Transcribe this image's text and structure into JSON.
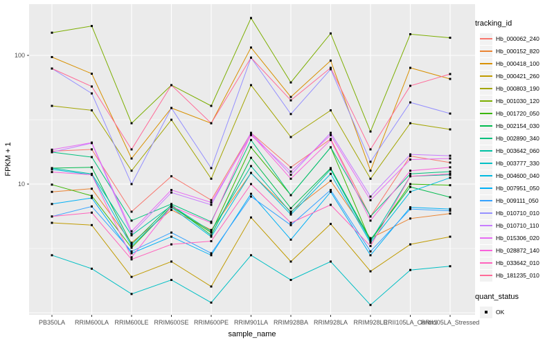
{
  "chart_data": {
    "type": "line",
    "title": "",
    "xlabel": "sample_name",
    "ylabel": "FPKM + 1",
    "yscale": "log10",
    "ylim": [
      1,
      250
    ],
    "yticks": [
      100,
      10
    ],
    "ytick_labels": [
      "100",
      "10"
    ],
    "ygrid_major": [
      100,
      10,
      1
    ],
    "ygrid_minor": [
      31.6,
      3.16
    ],
    "grid": true,
    "panel_color": "#EBEBEB",
    "grid_color": "#FFFFFF",
    "marker": "black-square",
    "legend_title": "tracking_id",
    "legend2_title": "quant_status",
    "legend2_items": [
      "OK"
    ],
    "categories": [
      "PB350LA",
      "RRIM600LA",
      "RRIM600LE",
      "RRIM600SE",
      "RRIM600PE",
      "RRIM901LA",
      "RRIM928BA",
      "RRIM928LA",
      "RRIM928LE",
      "RRII105LA_Control",
      "RRII105LA_Stressed"
    ],
    "series": [
      {
        "name": "Hb_000062_240",
        "color": "#F8766D",
        "values": [
          18,
          18.6,
          6.1,
          11.5,
          7.5,
          25,
          13.5,
          22.4,
          5.6,
          16.5,
          14.7
        ]
      },
      {
        "name": "Hb_000152_820",
        "color": "#EA8331",
        "values": [
          8.7,
          9.2,
          3.5,
          6.3,
          4.4,
          12.2,
          6.1,
          10.6,
          3.8,
          5.4,
          5.9
        ]
      },
      {
        "name": "Hb_000418_100",
        "color": "#D89000",
        "values": [
          97,
          72,
          15.8,
          39,
          29.7,
          115,
          47.5,
          91,
          12.7,
          80,
          65.6
        ]
      },
      {
        "name": "Hb_000421_260",
        "color": "#C09B00",
        "values": [
          5.0,
          4.8,
          1.9,
          2.5,
          1.6,
          5.5,
          2.5,
          4.9,
          2.1,
          3.4,
          3.9
        ]
      },
      {
        "name": "Hb_000803_190",
        "color": "#A3A500",
        "values": [
          40.5,
          37.4,
          12.7,
          31.6,
          11.0,
          58.7,
          23.2,
          37.4,
          11.0,
          29.7,
          26.6
        ]
      },
      {
        "name": "Hb_001030_120",
        "color": "#7CAE00",
        "values": [
          150,
          169,
          29.7,
          58.7,
          40.5,
          195,
          61.6,
          148,
          25.6,
          146,
          137
        ]
      },
      {
        "name": "Hb_001720_050",
        "color": "#39B600",
        "values": [
          9.9,
          8.1,
          3.2,
          6.7,
          4.2,
          19.3,
          8.2,
          19.3,
          3.6,
          10.0,
          9.8
        ]
      },
      {
        "name": "Hb_002154_030",
        "color": "#00BB4E",
        "values": [
          13.3,
          13.5,
          3.4,
          6.9,
          4.0,
          16.0,
          6.5,
          13.3,
          3.7,
          9.5,
          7.9
        ]
      },
      {
        "name": "Hb_002890_340",
        "color": "#00BF7D",
        "values": [
          17.7,
          16.2,
          5.2,
          7.0,
          5.1,
          22.0,
          8.2,
          19.3,
          5.6,
          12.0,
          12.5
        ]
      },
      {
        "name": "Hb_003642_060",
        "color": "#00C1A3",
        "values": [
          13.3,
          12.0,
          4.0,
          6.8,
          4.3,
          13.8,
          6.0,
          13.0,
          3.6,
          11.5,
          11.8
        ]
      },
      {
        "name": "Hb_003777_330",
        "color": "#00BFC4",
        "values": [
          2.8,
          2.2,
          1.4,
          1.8,
          1.2,
          2.8,
          1.8,
          2.5,
          1.15,
          2.15,
          2.3
        ]
      },
      {
        "name": "Hb_004600_040",
        "color": "#00BAE0",
        "values": [
          13.0,
          11.8,
          3.3,
          6.6,
          3.9,
          12.2,
          5.8,
          12.0,
          3.5,
          8.7,
          11.2
        ]
      },
      {
        "name": "Hb_007951_050",
        "color": "#00B0F6",
        "values": [
          7.0,
          7.8,
          2.9,
          3.9,
          2.8,
          8.4,
          3.7,
          8.7,
          2.8,
          6.6,
          6.4
        ]
      },
      {
        "name": "Hb_009111_050",
        "color": "#35A2FF",
        "values": [
          5.6,
          6.7,
          3.0,
          4.2,
          2.9,
          8.0,
          4.8,
          9.0,
          3.0,
          6.4,
          6.2
        ]
      },
      {
        "name": "Hb_010710_010",
        "color": "#9590FF",
        "values": [
          79,
          50.6,
          10.0,
          39,
          13.3,
          96,
          35,
          78,
          14.9,
          43.1,
          35.3
        ]
      },
      {
        "name": "Hb_010710_110",
        "color": "#C77CFF",
        "values": [
          17.7,
          20.8,
          4.1,
          8.6,
          6.9,
          25,
          11.8,
          25,
          8.0,
          17.0,
          16.6
        ]
      },
      {
        "name": "Hb_015306_020",
        "color": "#E76BF3",
        "values": [
          18.5,
          21.0,
          4.3,
          9.0,
          7.2,
          24,
          12.5,
          24,
          7.5,
          15.5,
          15.8
        ]
      },
      {
        "name": "Hb_028872_140",
        "color": "#FA62DB",
        "values": [
          12.4,
          11.8,
          2.7,
          6.7,
          5.0,
          24.5,
          11.0,
          22,
          5.2,
          12.7,
          13.5
        ]
      },
      {
        "name": "Hb_033642_010",
        "color": "#FF62BC",
        "values": [
          5.6,
          6.0,
          2.6,
          3.4,
          3.6,
          10.0,
          5.0,
          6.9,
          3.3,
          11.5,
          12.0
        ]
      },
      {
        "name": "Hb_181235_010",
        "color": "#FF6A98",
        "values": [
          79,
          57.3,
          18.6,
          58.7,
          29.7,
          96,
          44.7,
          80,
          18.6,
          58,
          71.6
        ]
      }
    ]
  }
}
